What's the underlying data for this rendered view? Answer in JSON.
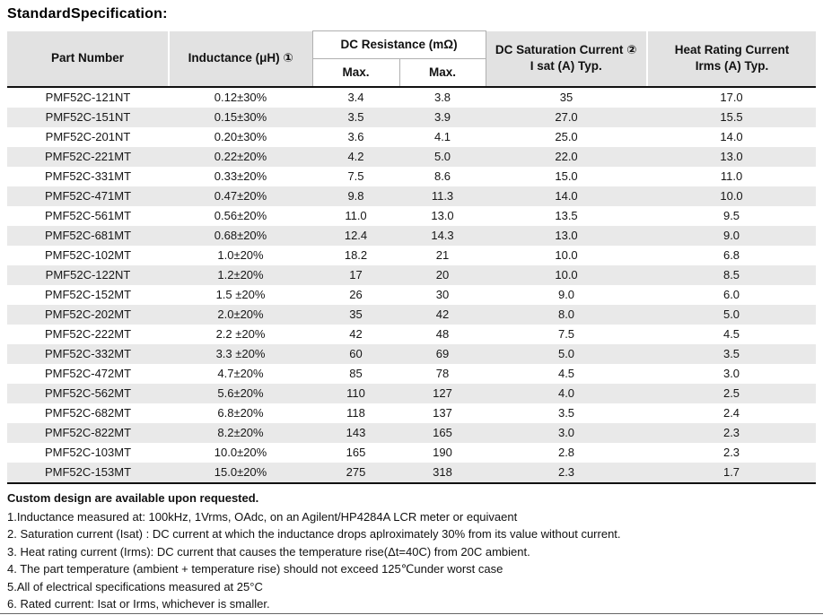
{
  "title": "StandardSpecification:",
  "table": {
    "columns": {
      "part_number": "Part Number",
      "inductance": "Inductance (μH) ①",
      "dc_resistance_group": "DC Resistance (mΩ)",
      "dc_resistance_sub1": "Max.",
      "dc_resistance_sub2": "Max.",
      "saturation_line1": "DC Saturation Current ②",
      "saturation_line2": "I sat (A) Typ.",
      "heat_line1": "Heat Rating Current",
      "heat_line2": "Irms (A) Typ."
    },
    "rows": [
      [
        "PMF52C-121NT",
        "0.12±30%",
        "3.4",
        "3.8",
        "35",
        "17.0"
      ],
      [
        "PMF52C-151NT",
        "0.15±30%",
        "3.5",
        "3.9",
        "27.0",
        "15.5"
      ],
      [
        "PMF52C-201NT",
        "0.20±30%",
        "3.6",
        "4.1",
        "25.0",
        "14.0"
      ],
      [
        "PMF52C-221MT",
        "0.22±20%",
        "4.2",
        "5.0",
        "22.0",
        "13.0"
      ],
      [
        "PMF52C-331MT",
        "0.33±20%",
        "7.5",
        "8.6",
        "15.0",
        "11.0"
      ],
      [
        "PMF52C-471MT",
        "0.47±20%",
        "9.8",
        "11.3",
        "14.0",
        "10.0"
      ],
      [
        "PMF52C-561MT",
        "0.56±20%",
        "11.0",
        "13.0",
        "13.5",
        "9.5"
      ],
      [
        "PMF52C-681MT",
        "0.68±20%",
        "12.4",
        "14.3",
        "13.0",
        "9.0"
      ],
      [
        "PMF52C-102MT",
        "1.0±20%",
        "18.2",
        "21",
        "10.0",
        "6.8"
      ],
      [
        "PMF52C-122NT",
        "1.2±20%",
        "17",
        "20",
        "10.0",
        "8.5"
      ],
      [
        "PMF52C-152MT",
        "1.5 ±20%",
        "26",
        "30",
        "9.0",
        "6.0"
      ],
      [
        "PMF52C-202MT",
        "2.0±20%",
        "35",
        "42",
        "8.0",
        "5.0"
      ],
      [
        "PMF52C-222MT",
        "2.2 ±20%",
        "42",
        "48",
        "7.5",
        "4.5"
      ],
      [
        "PMF52C-332MT",
        "3.3 ±20%",
        "60",
        "69",
        "5.0",
        "3.5"
      ],
      [
        "PMF52C-472MT",
        "4.7±20%",
        "85",
        "78",
        "4.5",
        "3.0"
      ],
      [
        "PMF52C-562MT",
        "5.6±20%",
        "110",
        "127",
        "4.0",
        "2.5"
      ],
      [
        "PMF52C-682MT",
        "6.8±20%",
        "118",
        "137",
        "3.5",
        "2.4"
      ],
      [
        "PMF52C-822MT",
        "8.2±20%",
        "143",
        "165",
        "3.0",
        "2.3"
      ],
      [
        "PMF52C-103MT",
        "10.0±20%",
        "165",
        "190",
        "2.8",
        "2.3"
      ],
      [
        "PMF52C-153MT",
        "15.0±20%",
        "275",
        "318",
        "2.3",
        "1.7"
      ]
    ]
  },
  "notes": {
    "heading": "Custom design are available upon requested.",
    "items": [
      "1.Inductance measured at: 100kHz, 1Vrms, OAdc, on an Agilent/HP4284A LCR meter or equivaent",
      "2. Saturation current (Isat) : DC current at which the inductance drops aplroximately 30% from its value without current.",
      "3. Heat rating current (Irms): DC current that causes the temperature rise(Δt=40C) from 20C ambient.",
      "4. The part temperature (ambient + temperature rise) should not exceed 125℃under worst case",
      "5.All of electrical specifications measured at 25°C",
      "6. Rated current: Isat or Irms, whichever is smaller."
    ]
  },
  "colors": {
    "header_bg": "#e2e2e2",
    "stripe_bg": "#e9e9e9",
    "thick_border": "#111111",
    "light_border": "#b0b0b0"
  }
}
